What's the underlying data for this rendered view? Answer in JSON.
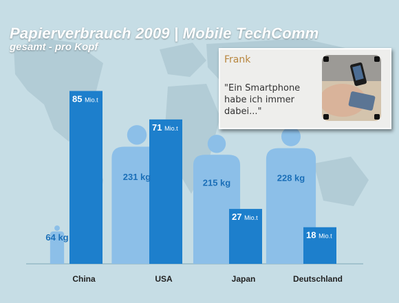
{
  "title": "Papierverbrauch 2009 | Mobile TechComm",
  "subtitle": "gesamt - pro Kopf",
  "quote": {
    "name": "Frank",
    "text": "\"Ein Smartphone habe ich immer dabei...\""
  },
  "colors": {
    "background": "#c6dde5",
    "map_land": "#b2ccd6",
    "person": "#8cbfe8",
    "bar": "#1d7fcc",
    "label_dark": "#1b6fb8",
    "label_light": "#ffffff",
    "quote_name": "#b8863e"
  },
  "chart_data": {
    "type": "bar",
    "categories": [
      "China",
      "USA",
      "Japan",
      "Deutschland"
    ],
    "series": [
      {
        "name": "gesamt",
        "values": [
          85,
          71,
          27,
          18
        ],
        "value_labels": [
          "85 Mio.t",
          "71 Mio.t",
          "27 Mio.t",
          "18 Mio.t"
        ],
        "unit_note": "Mio.t"
      },
      {
        "name": "pro Kopf",
        "values": [
          64,
          231,
          215,
          228
        ],
        "value_labels": [
          "64 kg",
          "231 kg",
          "215 kg",
          "228 kg"
        ],
        "unit_note": "kg",
        "marker": "person-silhouette"
      }
    ],
    "grid": false,
    "legend": "none"
  }
}
